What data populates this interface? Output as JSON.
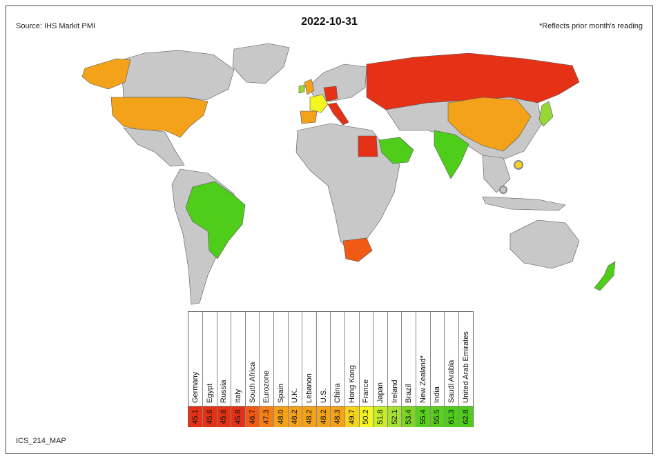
{
  "header": {
    "source": "Source: IHS Markit PMI",
    "title": "2022-10-31",
    "note": "*Reflects prior month's reading"
  },
  "footer": {
    "code": "ICS_214_MAP"
  },
  "colors": {
    "land_default": "#c8c8c8",
    "red": "#e53216",
    "orange_red": "#f05a14",
    "orange": "#f4a21a",
    "yellow": "#f5f51f",
    "light_green": "#97d836",
    "green": "#4fcd1b"
  },
  "legend": [
    {
      "name": "Germany",
      "value": "45.1",
      "color": "#e53216"
    },
    {
      "name": "Egypt",
      "value": "45.6",
      "color": "#e53216"
    },
    {
      "name": "Russia",
      "value": "45.8",
      "color": "#e53216"
    },
    {
      "name": "Italy",
      "value": "45.8",
      "color": "#e53216"
    },
    {
      "name": "South Africa",
      "value": "46.7",
      "color": "#f05a14"
    },
    {
      "name": "Eurozone",
      "value": "47.3",
      "color": "#f57e17"
    },
    {
      "name": "Spain",
      "value": "48.0",
      "color": "#f4a21a"
    },
    {
      "name": "U.K.",
      "value": "48.2",
      "color": "#f4a21a"
    },
    {
      "name": "Lebanon",
      "value": "48.2",
      "color": "#f4a21a"
    },
    {
      "name": "U.S.",
      "value": "48.2",
      "color": "#f4a21a"
    },
    {
      "name": "China",
      "value": "48.3",
      "color": "#f4a21a"
    },
    {
      "name": "Hong Kong",
      "value": "49.7",
      "color": "#f5d21e"
    },
    {
      "name": "France",
      "value": "50.2",
      "color": "#f5f51f"
    },
    {
      "name": "Japan",
      "value": "51.8",
      "color": "#c8ec2a"
    },
    {
      "name": "Ireland",
      "value": "52.1",
      "color": "#a6e030"
    },
    {
      "name": "Brazil",
      "value": "53.4",
      "color": "#7dd627"
    },
    {
      "name": "New Zealand*",
      "value": "55.4",
      "color": "#5bcf1e"
    },
    {
      "name": "India",
      "value": "55.5",
      "color": "#5bcf1e"
    },
    {
      "name": "Saudi Arabia",
      "value": "61.3",
      "color": "#4fcd1b"
    },
    {
      "name": "United Arab Emirates",
      "value": "62.8",
      "color": "#4fcd1b"
    }
  ]
}
